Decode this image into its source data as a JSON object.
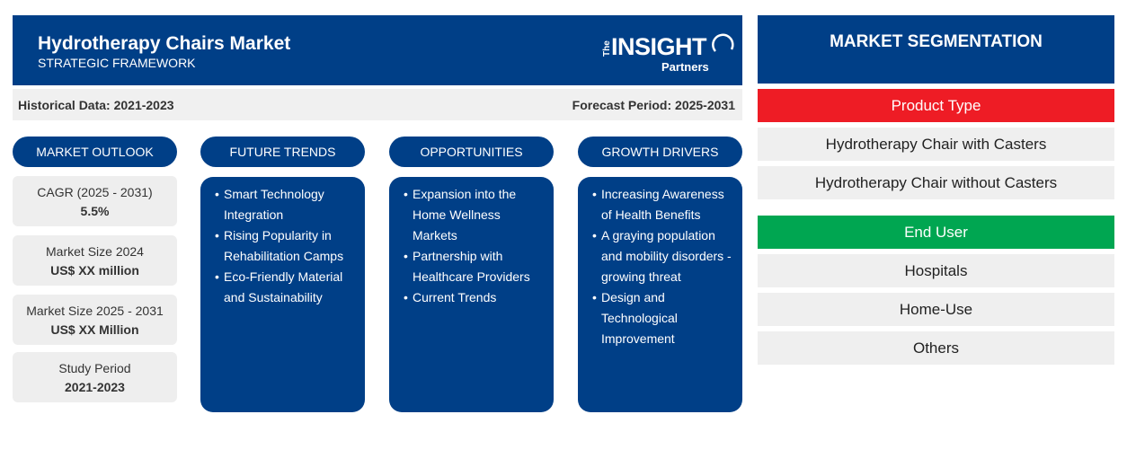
{
  "header": {
    "title": "Hydrotherapy Chairs Market",
    "subtitle": "STRATEGIC FRAMEWORK",
    "logo": {
      "the": "The",
      "insight": "INSIGHT",
      "partners": "Partners"
    }
  },
  "periods": {
    "historical": "Historical Data: 2021-2023",
    "forecast": "Forecast Period: 2025-2031"
  },
  "columns": {
    "outlook": "MARKET OUTLOOK",
    "trends": "FUTURE TRENDS",
    "opportunities": "OPPORTUNITIES",
    "drivers": "GROWTH DRIVERS"
  },
  "outlook": [
    {
      "label": "CAGR (2025 - 2031)",
      "value": "5.5%"
    },
    {
      "label": "Market Size 2024",
      "value": "US$ XX million"
    },
    {
      "label": "Market Size 2025 - 2031",
      "value": "US$ XX Million"
    },
    {
      "label": "Study Period",
      "value": "2021-2023"
    }
  ],
  "trends": [
    "Smart Technology Integration",
    "Rising Popularity in Rehabilitation Camps",
    "Eco-Friendly Material and Sustainability"
  ],
  "opportunities": [
    "Expansion into the Home Wellness Markets",
    "Partnership with Healthcare Providers",
    "Current Trends"
  ],
  "drivers": [
    "Increasing Awareness of Health Benefits",
    "A graying population and mobility disorders - growing threat",
    "Design and Technological Improvement"
  ],
  "segmentation": {
    "title": "MARKET SEGMENTATION",
    "product_type": {
      "label": "Product Type",
      "color": "#ee1c25",
      "items": [
        "Hydrotherapy Chair with Casters",
        "Hydrotherapy Chair without Casters"
      ]
    },
    "end_user": {
      "label": "End User",
      "color": "#00a651",
      "items": [
        "Hospitals",
        "Home-Use",
        "Others"
      ]
    }
  },
  "colors": {
    "primary": "#003f87",
    "panel_bg": "#eeeeee"
  }
}
